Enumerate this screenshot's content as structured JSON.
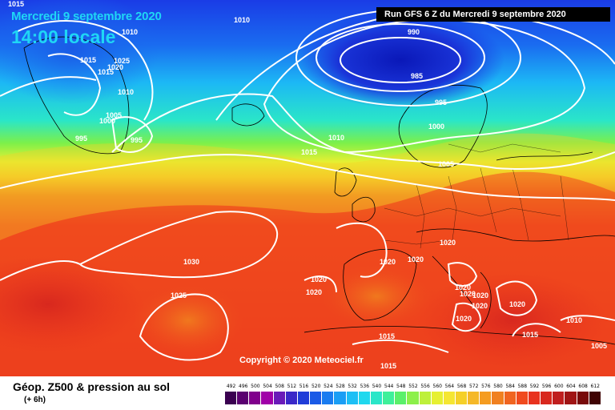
{
  "header": {
    "date": "Mercredi 9 septembre 2020",
    "time": "14:00 locale",
    "run": "Run GFS 6 Z du Mercredi 9 septembre 2020"
  },
  "copyright": "Copyright © 2020 Meteociel.fr",
  "footer": {
    "title": "Géop. Z500 & pression au sol",
    "subtitle": "(+ 6h)"
  },
  "legend": {
    "values": [
      "492",
      "496",
      "500",
      "504",
      "508",
      "512",
      "516",
      "520",
      "524",
      "528",
      "532",
      "536",
      "540",
      "544",
      "548",
      "552",
      "556",
      "560",
      "564",
      "568",
      "572",
      "576",
      "580",
      "584",
      "588",
      "592",
      "596",
      "600",
      "604",
      "608",
      "612"
    ],
    "colors": [
      "#3a0050",
      "#5a0070",
      "#80008c",
      "#a000a8",
      "#6a1ab8",
      "#3a28c8",
      "#1f3cd8",
      "#1a5ae6",
      "#1a7cf0",
      "#1a9ef5",
      "#1cbff5",
      "#1fd8ee",
      "#2ae6c8",
      "#3ef09a",
      "#5af06a",
      "#8cf04a",
      "#bef03a",
      "#e6f032",
      "#f5e632",
      "#f5d028",
      "#f5b828",
      "#f59c20",
      "#f08020",
      "#f06420",
      "#f04a1e",
      "#e8321e",
      "#d8281e",
      "#c01e1e",
      "#a01414",
      "#780a0a",
      "#400404"
    ]
  },
  "map_labels": [
    {
      "text": "1015"
    },
    {
      "text": "1010"
    },
    {
      "text": "1010"
    },
    {
      "text": "1025"
    },
    {
      "text": "1015"
    },
    {
      "text": "1020"
    },
    {
      "text": "1010"
    },
    {
      "text": "1005"
    },
    {
      "text": "1000"
    },
    {
      "text": "995"
    },
    {
      "text": "995"
    },
    {
      "text": "990"
    },
    {
      "text": "985"
    },
    {
      "text": "995"
    },
    {
      "text": "1000"
    },
    {
      "text": "1010"
    },
    {
      "text": "1015"
    },
    {
      "text": "1005"
    },
    {
      "text": "1020"
    },
    {
      "text": "1030"
    },
    {
      "text": "1020"
    },
    {
      "text": "1020"
    },
    {
      "text": "1020"
    },
    {
      "text": "1020"
    },
    {
      "text": "1025"
    },
    {
      "text": "1020"
    },
    {
      "text": "1020"
    },
    {
      "text": "1020"
    },
    {
      "text": "1020"
    },
    {
      "text": "1020"
    },
    {
      "text": "1020"
    },
    {
      "text": "1010"
    },
    {
      "text": "1015"
    },
    {
      "text": "1015"
    },
    {
      "text": "1015"
    },
    {
      "text": "1005"
    },
    {
      "text": "1015"
    }
  ]
}
